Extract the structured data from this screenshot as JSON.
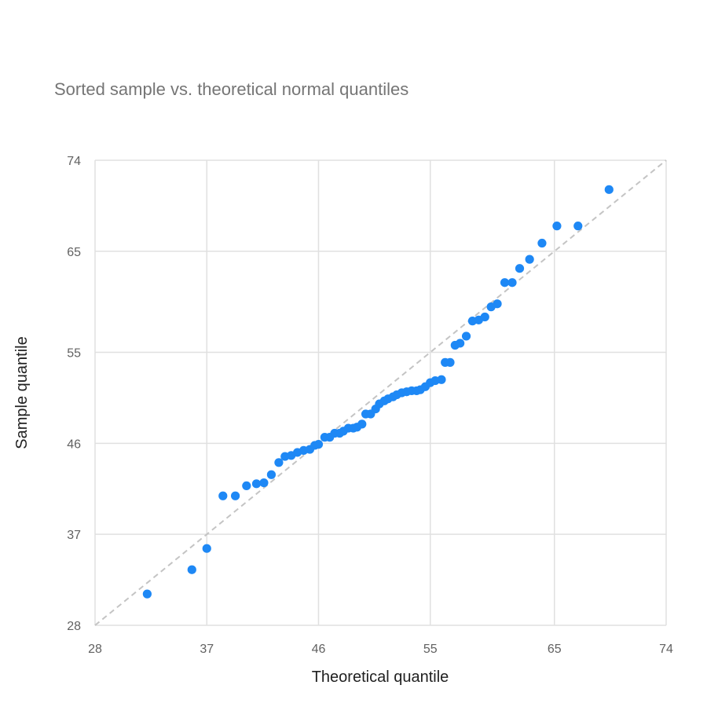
{
  "chart_data": {
    "type": "scatter",
    "title": "Sorted sample vs. theoretical normal quantiles",
    "xlabel": "Theoretical quantile",
    "ylabel": "Sample quantile",
    "xlim": [
      28,
      74
    ],
    "ylim": [
      28,
      74
    ],
    "x_ticks": [
      "28",
      "37",
      "46",
      "55",
      "65",
      "74"
    ],
    "y_ticks": [
      "28",
      "37",
      "46",
      "55",
      "65",
      "74"
    ],
    "grid": true,
    "reference_line": {
      "from": [
        28,
        28
      ],
      "to": [
        74,
        74
      ],
      "style": "dashed"
    },
    "colors": {
      "points": "#1e88f5",
      "reference_line": "#c4c4c4",
      "grid": "#e0e0e0"
    },
    "series": [
      {
        "points": [
          [
            32.2,
            31.1
          ],
          [
            35.8,
            33.5
          ],
          [
            37.0,
            35.6
          ],
          [
            38.3,
            40.8
          ],
          [
            39.3,
            40.8
          ],
          [
            40.2,
            41.8
          ],
          [
            41.0,
            42.0
          ],
          [
            41.6,
            42.1
          ],
          [
            42.2,
            42.9
          ],
          [
            42.8,
            44.1
          ],
          [
            43.3,
            44.7
          ],
          [
            43.8,
            44.8
          ],
          [
            44.3,
            45.1
          ],
          [
            44.8,
            45.3
          ],
          [
            45.3,
            45.4
          ],
          [
            45.7,
            45.8
          ],
          [
            46.0,
            45.9
          ],
          [
            46.5,
            46.6
          ],
          [
            46.9,
            46.6
          ],
          [
            47.3,
            47.0
          ],
          [
            47.7,
            47.0
          ],
          [
            48.0,
            47.2
          ],
          [
            48.4,
            47.5
          ],
          [
            48.8,
            47.5
          ],
          [
            49.1,
            47.6
          ],
          [
            49.5,
            47.9
          ],
          [
            49.8,
            48.9
          ],
          [
            50.2,
            48.9
          ],
          [
            50.6,
            49.4
          ],
          [
            50.9,
            49.9
          ],
          [
            51.3,
            50.2
          ],
          [
            51.6,
            50.4
          ],
          [
            52.0,
            50.6
          ],
          [
            52.3,
            50.8
          ],
          [
            52.7,
            51.0
          ],
          [
            53.1,
            51.1
          ],
          [
            53.5,
            51.2
          ],
          [
            53.9,
            51.2
          ],
          [
            54.2,
            51.3
          ],
          [
            54.6,
            51.6
          ],
          [
            55.0,
            52.0
          ],
          [
            55.4,
            52.2
          ],
          [
            55.9,
            52.3
          ],
          [
            56.2,
            54.0
          ],
          [
            56.6,
            54.0
          ],
          [
            57.0,
            55.7
          ],
          [
            57.4,
            55.9
          ],
          [
            57.9,
            56.6
          ],
          [
            58.4,
            58.1
          ],
          [
            58.9,
            58.2
          ],
          [
            59.4,
            58.5
          ],
          [
            59.9,
            59.5
          ],
          [
            60.4,
            59.8
          ],
          [
            61.0,
            61.9
          ],
          [
            61.6,
            61.9
          ],
          [
            62.2,
            63.3
          ],
          [
            63.0,
            64.2
          ],
          [
            64.0,
            65.8
          ],
          [
            65.2,
            67.5
          ],
          [
            66.9,
            67.5
          ],
          [
            69.4,
            71.1
          ]
        ]
      }
    ]
  }
}
